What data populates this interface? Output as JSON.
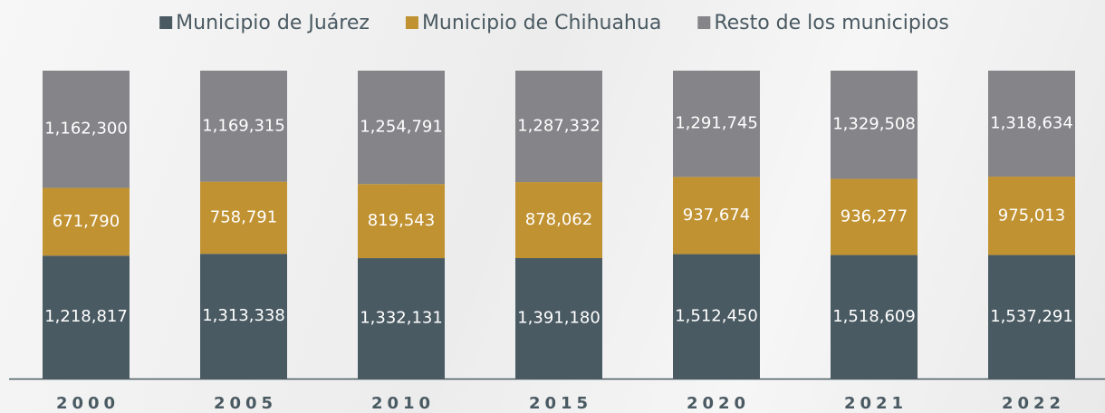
{
  "chart_data": {
    "type": "bar",
    "stack": "percent",
    "categories": [
      "2000",
      "2005",
      "2010",
      "2015",
      "2020",
      "2021",
      "2022"
    ],
    "series": [
      {
        "name": "Municipio de Juárez",
        "color": "#4a5a62",
        "values": [
          1218817,
          1313338,
          1332131,
          1391180,
          1512450,
          1518609,
          1537291
        ],
        "value_labels": [
          "1,218,817",
          "1,313,338",
          "1,332,131",
          "1,391,180",
          "1,512,450",
          "1,518,609",
          "1,537,291"
        ]
      },
      {
        "name": "Municipio de Chihuahua",
        "color": "#c09232",
        "values": [
          671790,
          758791,
          819543,
          878062,
          937674,
          936277,
          975013
        ],
        "value_labels": [
          "671,790",
          "758,791",
          "819,543",
          "878,062",
          "937,674",
          "936,277",
          "975,013"
        ]
      },
      {
        "name": "Resto de los municipios",
        "color": "#858589",
        "values": [
          1162300,
          1169315,
          1254791,
          1287332,
          1291745,
          1329508,
          1318634
        ],
        "value_labels": [
          "1,162,300",
          "1,169,315",
          "1,254,791",
          "1,287,332",
          "1,291,745",
          "1,329,508",
          "1,318,634"
        ]
      }
    ]
  }
}
